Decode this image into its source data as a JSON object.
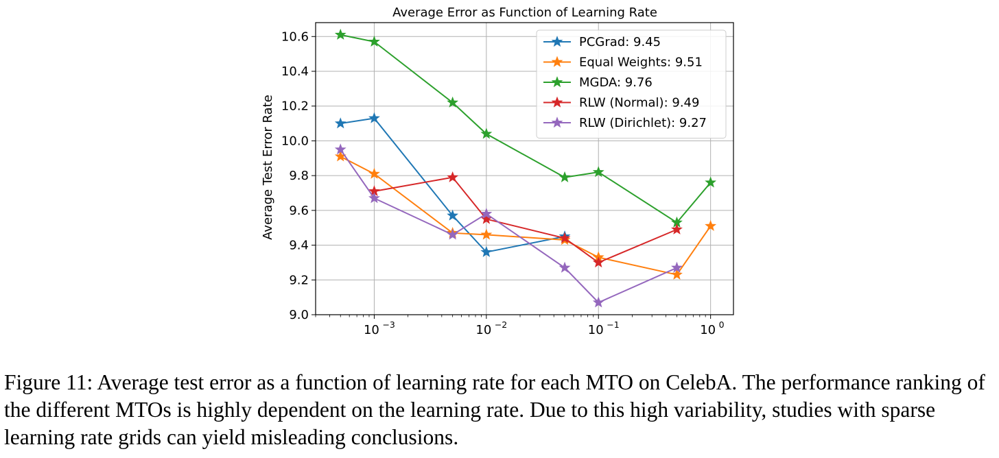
{
  "chart_data": {
    "type": "line",
    "title": "Average Error as Function of Learning Rate",
    "xlabel": "",
    "ylabel": "Average Test Error Rate",
    "x_scale": "log",
    "xlim": [
      0.0003,
      1.6
    ],
    "ylim": [
      9.0,
      10.68
    ],
    "x_ticks": [
      0.001,
      0.01,
      0.1,
      1
    ],
    "x_tick_labels": [
      {
        "base": "10",
        "exp": "−3"
      },
      {
        "base": "10",
        "exp": "−2"
      },
      {
        "base": "10",
        "exp": "−1"
      },
      {
        "base": "10",
        "exp": "0"
      }
    ],
    "y_ticks": [
      9.0,
      9.2,
      9.4,
      9.6,
      9.8,
      10.0,
      10.2,
      10.4,
      10.6
    ],
    "y_tick_labels": [
      "9.0",
      "9.2",
      "9.4",
      "9.6",
      "9.8",
      "10.0",
      "10.2",
      "10.4",
      "10.6"
    ],
    "grid": true,
    "legend_position": "top-right",
    "marker": "star",
    "series": [
      {
        "name": "PCGrad: 9.45",
        "color": "#1f77b4",
        "x": [
          0.0005,
          0.001,
          0.005,
          0.01,
          0.05
        ],
        "y": [
          10.1,
          10.13,
          9.57,
          9.36,
          9.45
        ]
      },
      {
        "name": "Equal Weights: 9.51",
        "color": "#ff7f0e",
        "x": [
          0.0005,
          0.001,
          0.005,
          0.01,
          0.05,
          0.1,
          0.5,
          1
        ],
        "y": [
          9.91,
          9.81,
          9.47,
          9.46,
          9.43,
          9.33,
          9.23,
          9.51
        ]
      },
      {
        "name": "MGDA: 9.76",
        "color": "#2ca02c",
        "x": [
          0.0005,
          0.001,
          0.005,
          0.01,
          0.05,
          0.1,
          0.5,
          1
        ],
        "y": [
          10.61,
          10.57,
          10.22,
          10.04,
          9.79,
          9.82,
          9.53,
          9.76
        ]
      },
      {
        "name": "RLW (Normal): 9.49",
        "color": "#d62728",
        "x": [
          0.001,
          0.005,
          0.01,
          0.05,
          0.1,
          0.5
        ],
        "y": [
          9.71,
          9.79,
          9.55,
          9.44,
          9.3,
          9.49
        ]
      },
      {
        "name": "RLW (Dirichlet): 9.27",
        "color": "#9467bd",
        "x": [
          0.0005,
          0.001,
          0.005,
          0.01,
          0.05,
          0.1,
          0.5
        ],
        "y": [
          9.95,
          9.67,
          9.46,
          9.58,
          9.27,
          9.07,
          9.27
        ]
      }
    ]
  },
  "caption": "Figure 11: Average test error as a function of learning rate for each MTO on CelebA. The performance ranking of the different MTOs is highly dependent on the learning rate. Due to this high variability, studies with sparse learning rate grids can yield misleading conclusions."
}
